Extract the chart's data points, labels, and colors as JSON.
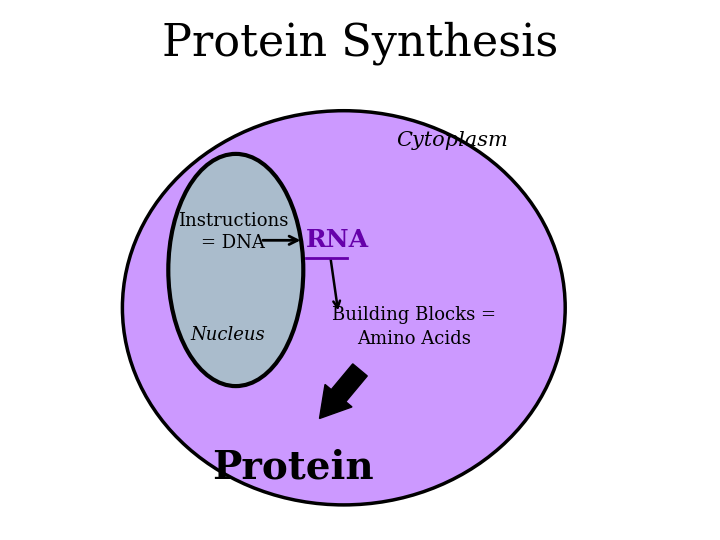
{
  "title": "Protein Synthesis",
  "title_fontsize": 32,
  "bg_color": "#ffffff",
  "cytoplasm_color": "#cc99ff",
  "cytoplasm_edge_color": "#000000",
  "nucleus_color": "#aabccc",
  "nucleus_edge_color": "#000000",
  "cytoplasm_label": "Cytoplasm",
  "cytoplasm_label_style": "italic",
  "cytoplasm_label_fontsize": 15,
  "nucleus_label": "Nucleus",
  "nucleus_label_style": "italic",
  "nucleus_label_fontsize": 13,
  "instructions_label": "Instructions\n= DNA",
  "instructions_fontsize": 13,
  "rna_label": "RNA",
  "rna_fontsize": 18,
  "rna_color": "#6600aa",
  "building_blocks_label": "Building Blocks =\nAmino Acids",
  "building_blocks_fontsize": 13,
  "protein_label": "Protein",
  "protein_fontsize": 28
}
